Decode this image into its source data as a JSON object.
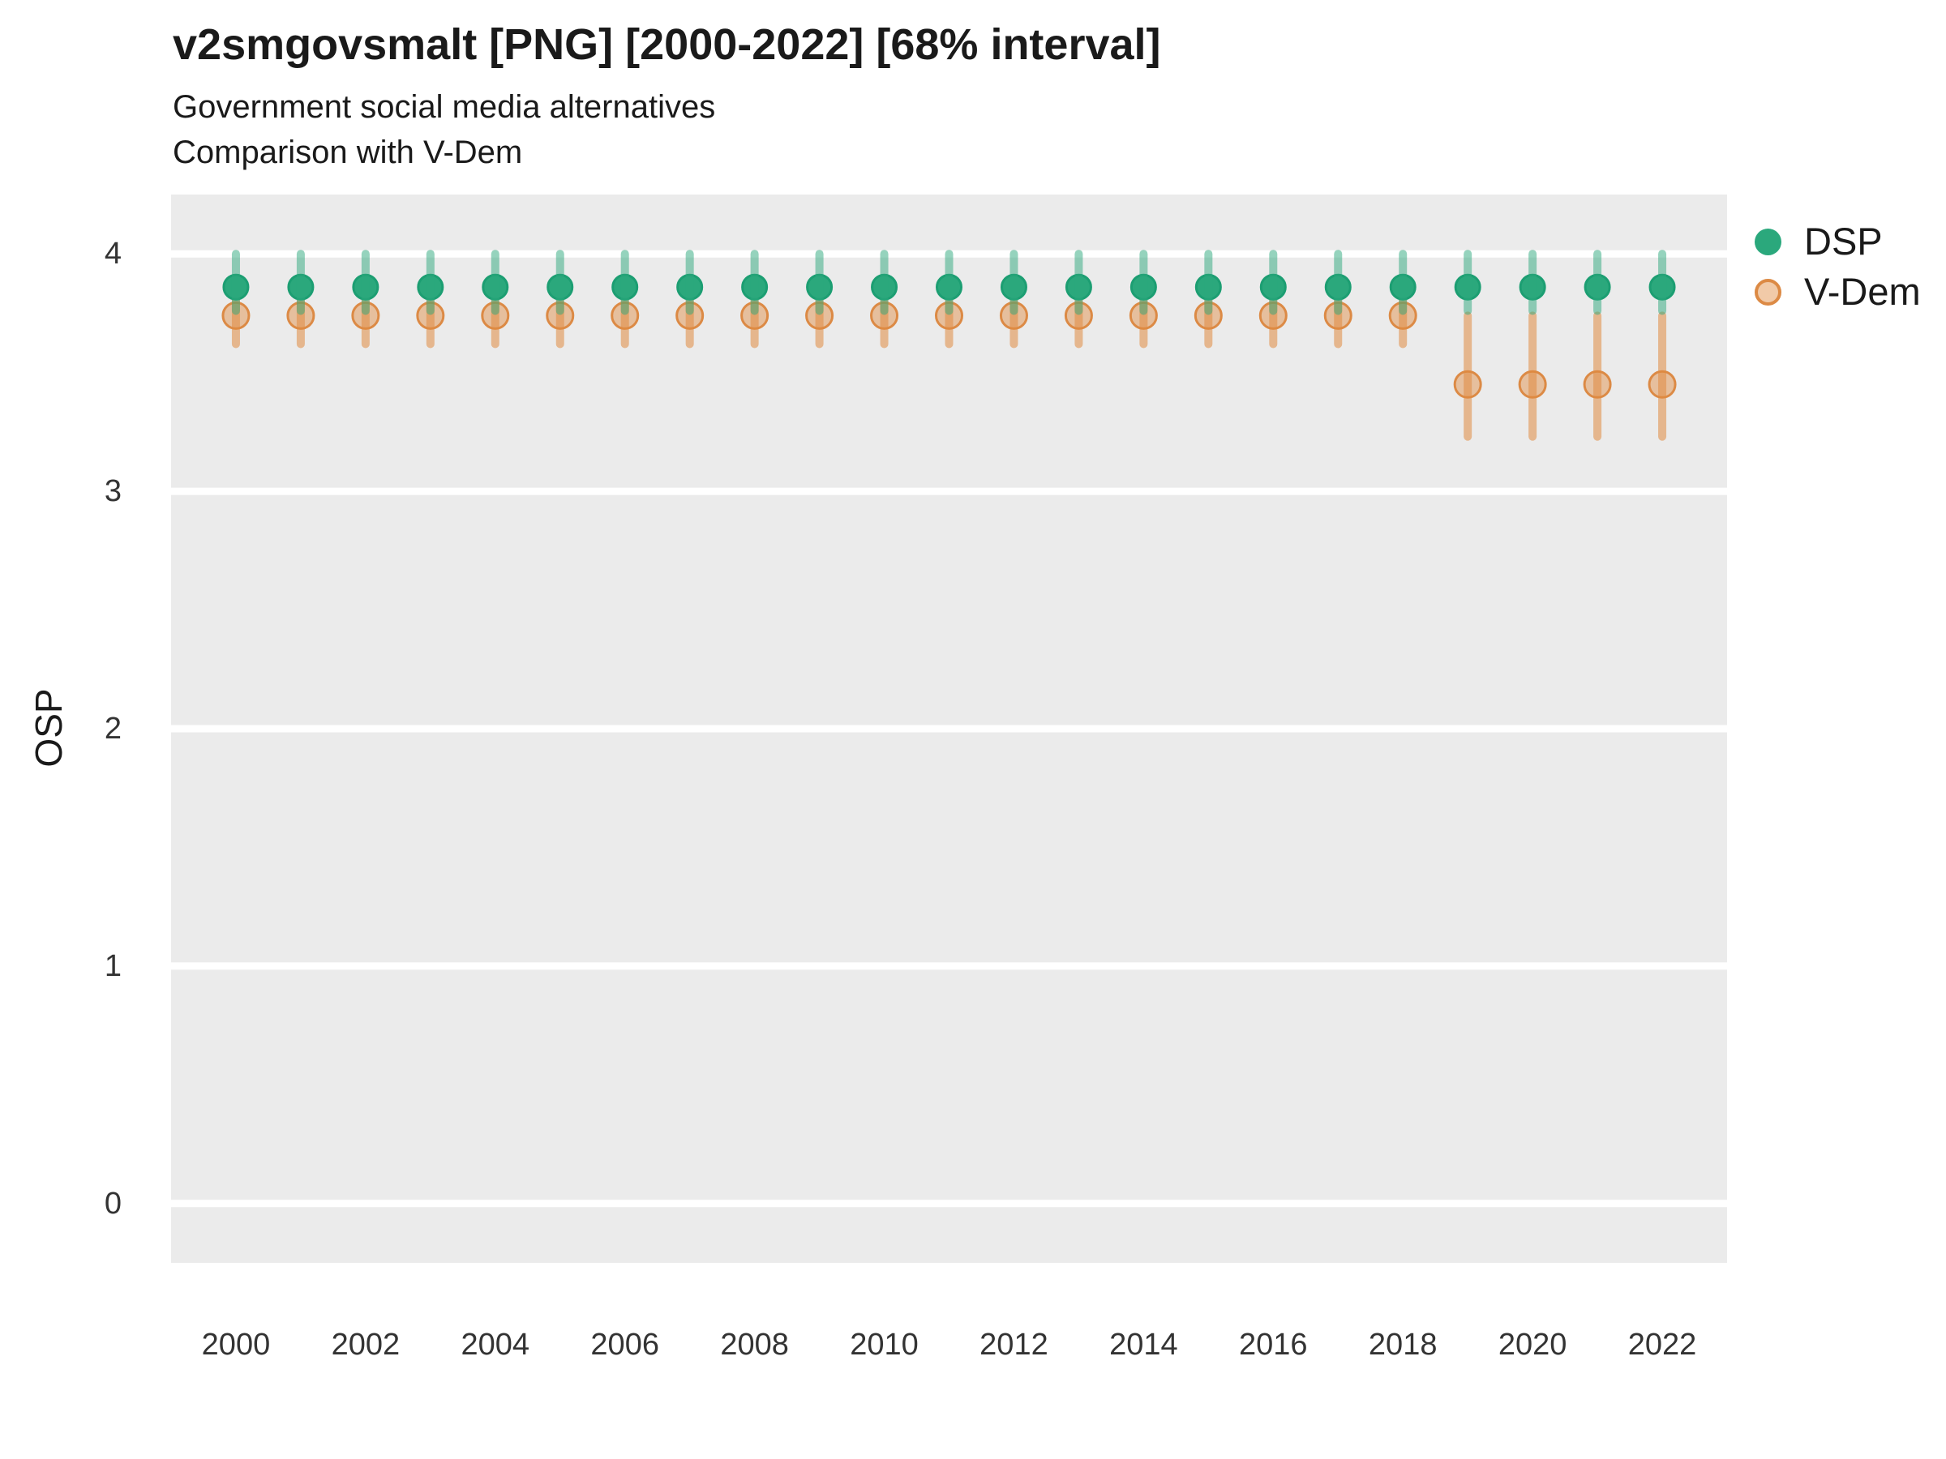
{
  "colors": {
    "background": "#FFFFFF",
    "panel": "#EBEBEB",
    "grid": "#FFFFFF",
    "title_text": "#1A1A1A",
    "tick_text": "#333333",
    "dsp_green": "#2BA87C",
    "vdem_orange": "#DC8A45"
  },
  "chart_data": {
    "type": "scatter",
    "title": "v2smgovsmalt [PNG] [2000-2022] [68% interval]",
    "subtitle": "Government social media alternatives",
    "subtitle2": "Comparison with V-Dem",
    "xlabel": "",
    "ylabel": "OSP",
    "interval": "68%",
    "grid": "horizontal-major-only",
    "legend_position": "right-top",
    "xlim": [
      1999,
      2023
    ],
    "ylim": [
      -0.25,
      4.25
    ],
    "xticks": [
      2000,
      2002,
      2004,
      2006,
      2008,
      2010,
      2012,
      2014,
      2016,
      2018,
      2020,
      2022
    ],
    "yticks": [
      0,
      1,
      2,
      3,
      4
    ],
    "x": [
      2000,
      2001,
      2002,
      2003,
      2004,
      2005,
      2006,
      2007,
      2008,
      2009,
      2010,
      2011,
      2012,
      2013,
      2014,
      2015,
      2016,
      2017,
      2018,
      2019,
      2020,
      2021,
      2022
    ],
    "series": [
      {
        "name": "DSP",
        "fill": "#2BA87C",
        "stroke": "#1C9E72",
        "bar_color": "rgba(43,168,124,0.50)",
        "values": [
          3.86,
          3.86,
          3.86,
          3.86,
          3.86,
          3.86,
          3.86,
          3.86,
          3.86,
          3.86,
          3.86,
          3.86,
          3.86,
          3.86,
          3.86,
          3.86,
          3.86,
          3.86,
          3.86,
          3.86,
          3.86,
          3.86,
          3.86
        ],
        "lo": [
          3.76,
          3.76,
          3.76,
          3.76,
          3.76,
          3.76,
          3.76,
          3.76,
          3.76,
          3.76,
          3.76,
          3.76,
          3.76,
          3.76,
          3.76,
          3.76,
          3.76,
          3.76,
          3.76,
          3.76,
          3.76,
          3.76,
          3.76
        ],
        "hi": [
          4.0,
          4.0,
          4.0,
          4.0,
          4.0,
          4.0,
          4.0,
          4.0,
          4.0,
          4.0,
          4.0,
          4.0,
          4.0,
          4.0,
          4.0,
          4.0,
          4.0,
          4.0,
          4.0,
          4.0,
          4.0,
          4.0,
          4.0
        ]
      },
      {
        "name": "V-Dem",
        "fill": "rgba(224,138,63,0.45)",
        "stroke": "#DC8A45",
        "bar_color": "rgba(224,138,63,0.55)",
        "values": [
          3.74,
          3.74,
          3.74,
          3.74,
          3.74,
          3.74,
          3.74,
          3.74,
          3.74,
          3.74,
          3.74,
          3.74,
          3.74,
          3.74,
          3.74,
          3.74,
          3.74,
          3.74,
          3.74,
          3.45,
          3.45,
          3.45,
          3.45
        ],
        "lo": [
          3.62,
          3.62,
          3.62,
          3.62,
          3.62,
          3.62,
          3.62,
          3.62,
          3.62,
          3.62,
          3.62,
          3.62,
          3.62,
          3.62,
          3.62,
          3.62,
          3.62,
          3.62,
          3.62,
          3.23,
          3.23,
          3.23,
          3.23
        ],
        "hi": [
          3.85,
          3.85,
          3.85,
          3.85,
          3.85,
          3.85,
          3.85,
          3.85,
          3.85,
          3.85,
          3.85,
          3.85,
          3.85,
          3.85,
          3.85,
          3.85,
          3.85,
          3.85,
          3.85,
          3.74,
          3.74,
          3.74,
          3.74
        ]
      }
    ]
  }
}
